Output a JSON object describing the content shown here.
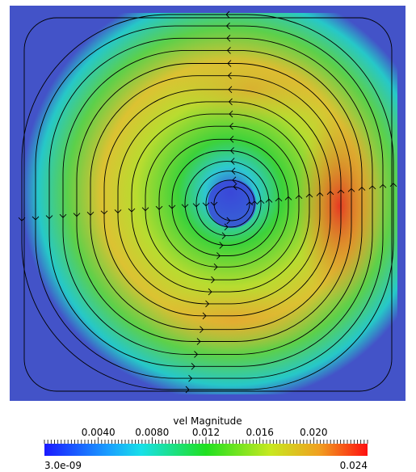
{
  "figure": {
    "colormap": {
      "title": "vel Magnitude",
      "range": {
        "min": "3.0e-09",
        "max": "0.024"
      },
      "tick_labels": [
        "0.0040",
        "0.0080",
        "0.012",
        "0.016",
        "0.020"
      ],
      "tick_values": [
        0.004,
        0.008,
        0.012,
        0.016,
        0.02
      ],
      "min_value": 0.0,
      "max_value": 0.024,
      "colors": [
        "#3b4cc0",
        "#1fc8e8",
        "#28d23a",
        "#e6e61e",
        "#e02020"
      ]
    },
    "field": {
      "background": "#4353c8",
      "vortex_center_color": "#3a48d8",
      "hot_spot_color": "#e33a24",
      "streamline_color": "#000000"
    }
  }
}
